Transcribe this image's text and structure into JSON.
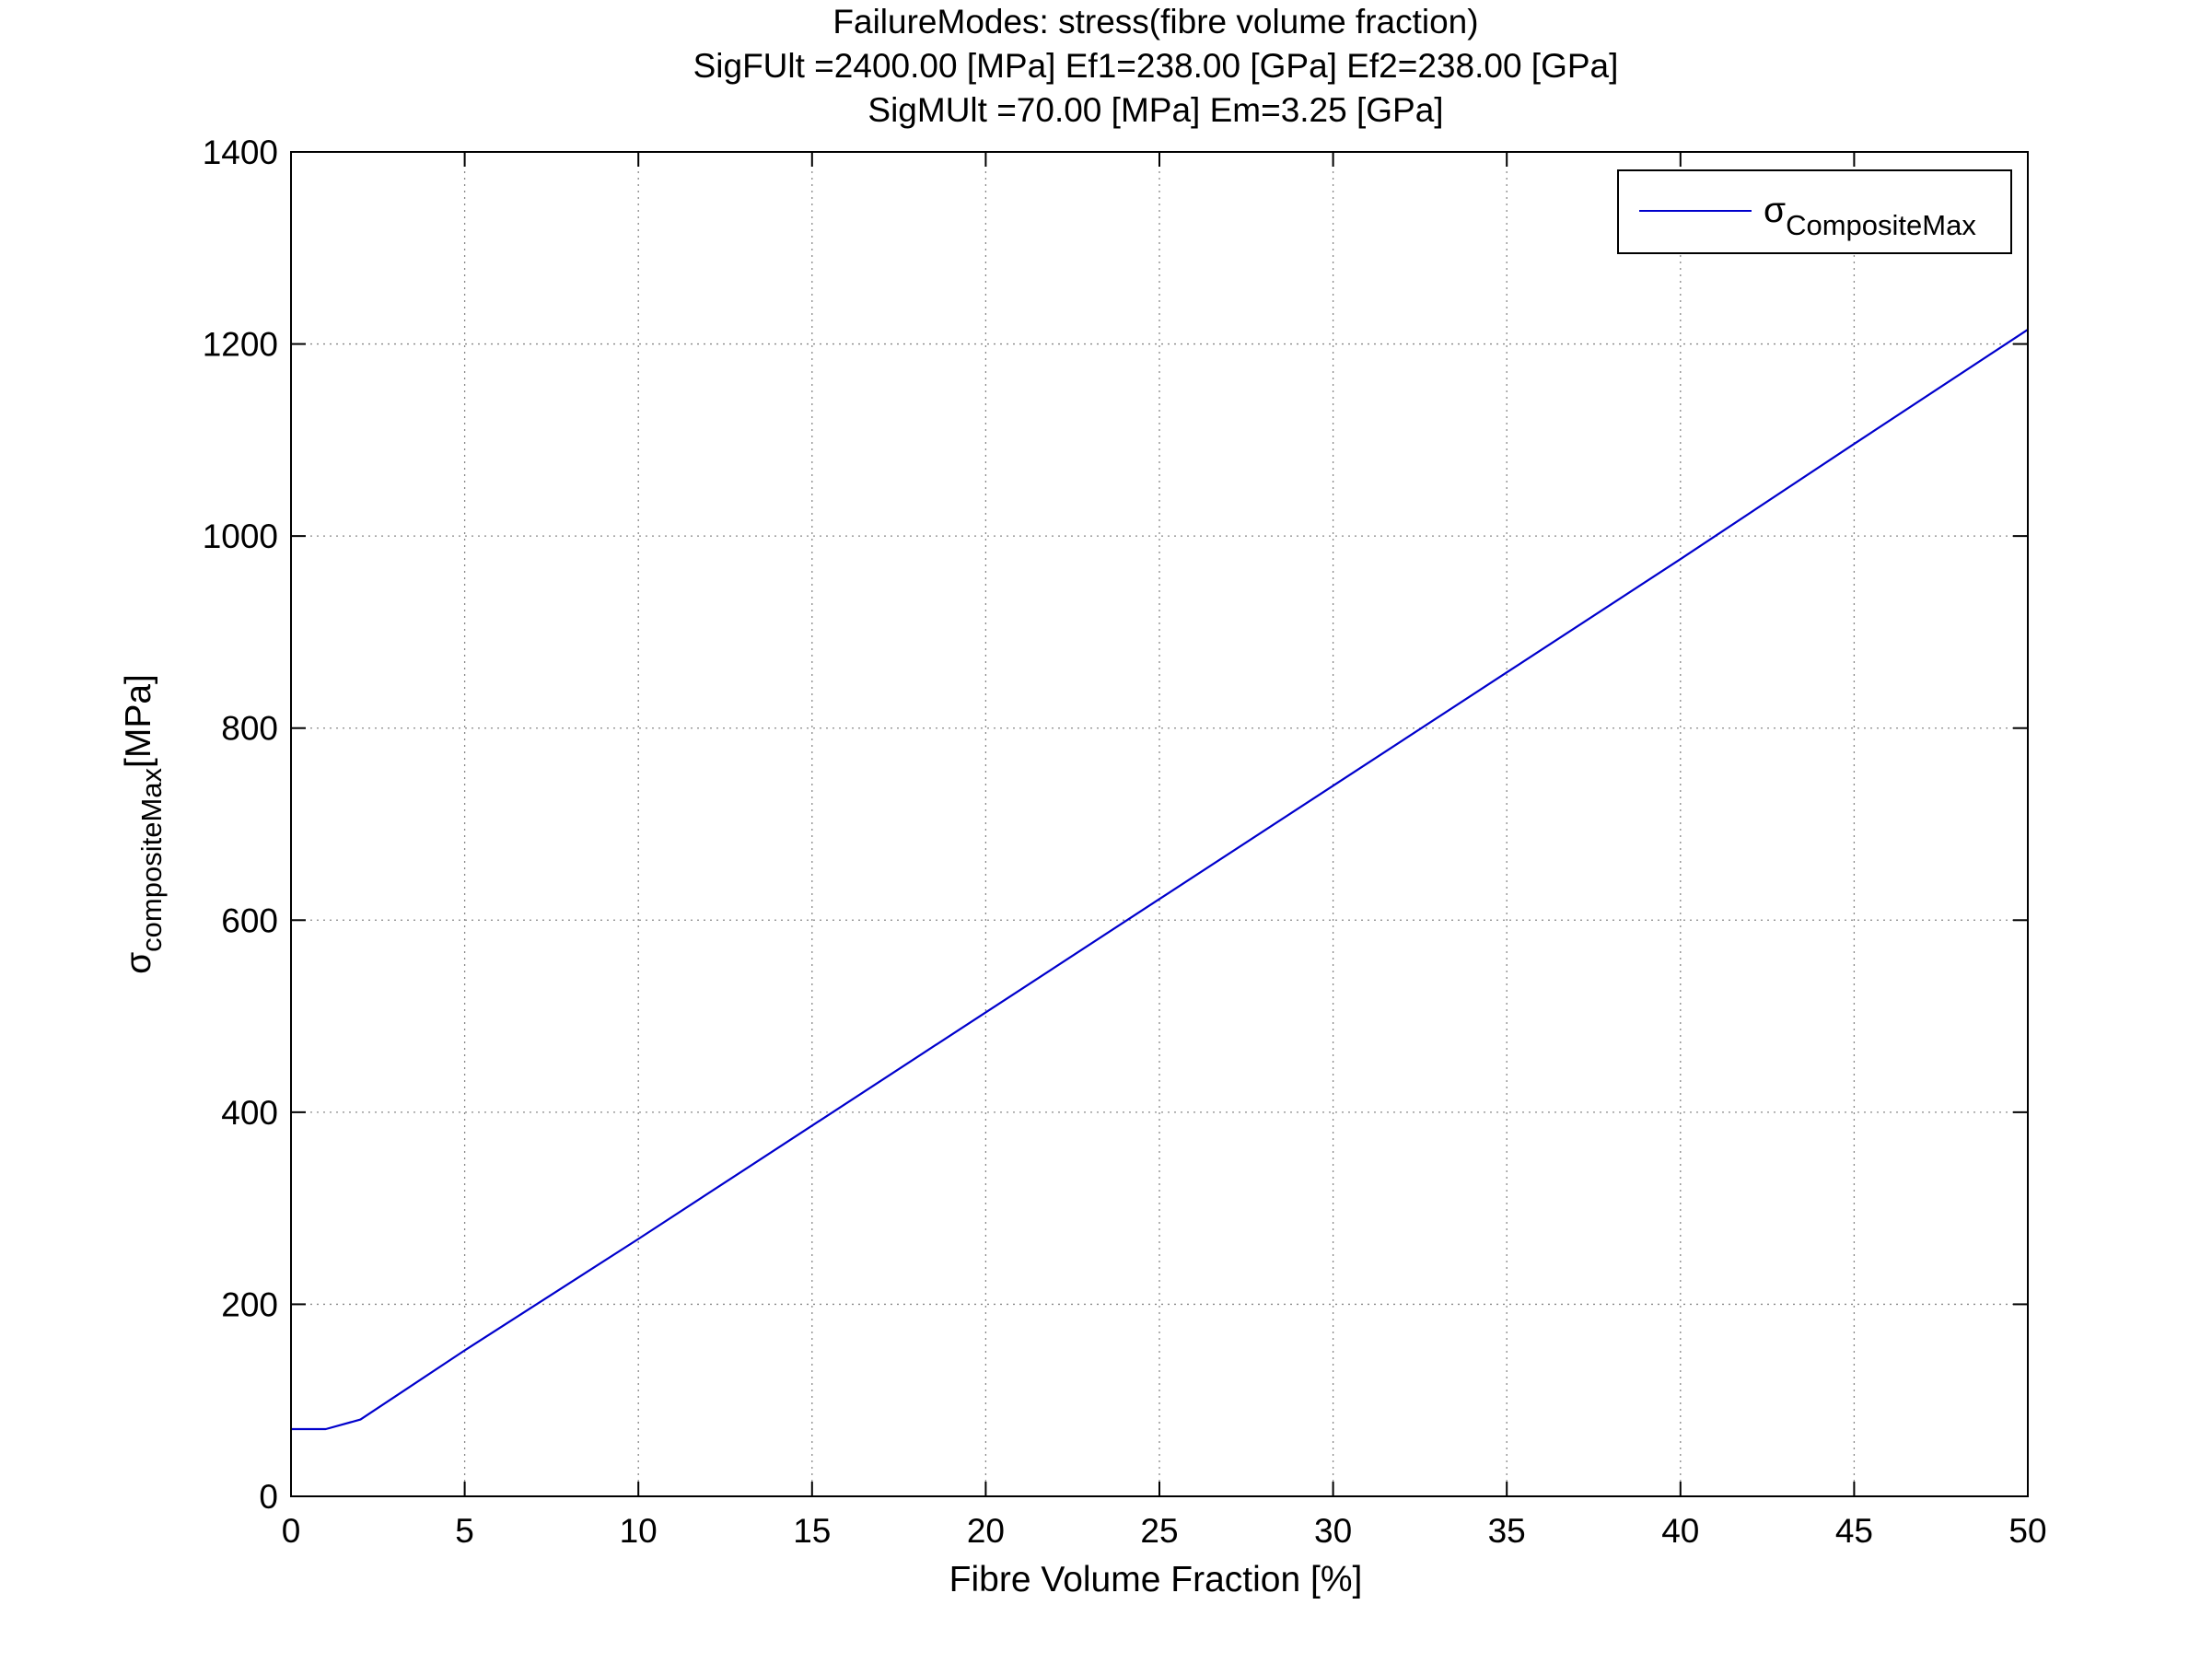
{
  "chart_data": {
    "type": "line",
    "title": [
      "FailureModes: stress(fibre volume fraction)",
      "SigFUlt =2400.00 [MPa] Ef1=238.00 [GPa] Ef2=238.00 [GPa]",
      "SigMUlt =70.00 [MPa]  Em=3.25 [GPa]"
    ],
    "xlabel": "Fibre Volume Fraction [%]",
    "ylabel": {
      "symbol": "σ",
      "subscript": "compositeMax",
      "unit": "[MPa]"
    },
    "xlim": [
      0,
      50
    ],
    "ylim": [
      0,
      1400
    ],
    "xticks": [
      0,
      5,
      10,
      15,
      20,
      25,
      30,
      35,
      40,
      45,
      50
    ],
    "yticks": [
      0,
      200,
      400,
      600,
      800,
      1000,
      1200,
      1400
    ],
    "grid": true,
    "legend_position": "top-right",
    "series": [
      {
        "name_symbol": "σ",
        "name_subscript": "CompositeMax",
        "color": "#0000cc",
        "x": [
          0,
          1,
          2,
          3,
          5,
          10,
          15,
          20,
          25,
          30,
          35,
          40,
          45,
          50
        ],
        "y": [
          70,
          70,
          80,
          104,
          152,
          268,
          386,
          504,
          622,
          740,
          858,
          976,
          1096,
          1215
        ]
      }
    ]
  }
}
